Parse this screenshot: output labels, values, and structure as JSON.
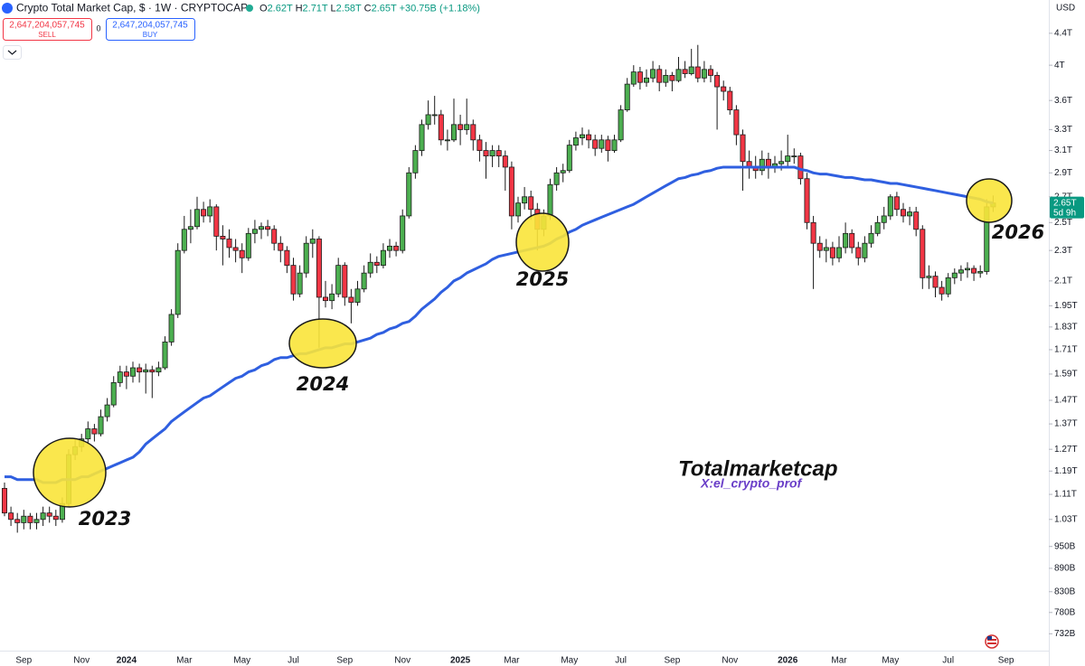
{
  "toolbar": {
    "title": "Crypto Total Market Cap, $ · 1W · CRYPTOCAP",
    "ohlc": [
      {
        "key": "O",
        "value": "2.62T"
      },
      {
        "key": "H",
        "value": "2.71T"
      },
      {
        "key": "L",
        "value": "2.58T"
      },
      {
        "key": "C",
        "value": "2.65T"
      }
    ],
    "change": "+30.75B (+1.18%)",
    "sell_price": "2,647,204,057,745",
    "sell_label": "SELL",
    "spread": "0",
    "buy_price": "2,647,204,057,745",
    "buy_label": "BUY"
  },
  "chart_data": {
    "type": "candlestick",
    "currency": "USD",
    "log_scale": true,
    "grid": false,
    "up_color": "#4caf50",
    "down_color": "#f23645",
    "ylim": [
      0.696,
      4.86
    ],
    "yticks": [
      {
        "value": 4.4,
        "label": "4.4T"
      },
      {
        "value": 4,
        "label": "4T"
      },
      {
        "value": 3.6,
        "label": "3.6T"
      },
      {
        "value": 3.3,
        "label": "3.3T"
      },
      {
        "value": 3.1,
        "label": "3.1T"
      },
      {
        "value": 2.9,
        "label": "2.9T"
      },
      {
        "value": 2.7,
        "label": "2.7T"
      },
      {
        "value": 2.5,
        "label": "2.5T"
      },
      {
        "value": 2.3,
        "label": "2.3T"
      },
      {
        "value": 2.1,
        "label": "2.1T"
      },
      {
        "value": 1.95,
        "label": "1.95T"
      },
      {
        "value": 1.83,
        "label": "1.83T"
      },
      {
        "value": 1.71,
        "label": "1.71T"
      },
      {
        "value": 1.59,
        "label": "1.59T"
      },
      {
        "value": 1.47,
        "label": "1.47T"
      },
      {
        "value": 1.37,
        "label": "1.37T"
      },
      {
        "value": 1.27,
        "label": "1.27T"
      },
      {
        "value": 1.19,
        "label": "1.19T"
      },
      {
        "value": 1.11,
        "label": "1.11T"
      },
      {
        "value": 1.03,
        "label": "1.03T"
      },
      {
        "value": 0.95,
        "label": "950B"
      },
      {
        "value": 0.89,
        "label": "890B"
      },
      {
        "value": 0.83,
        "label": "830B"
      },
      {
        "value": 0.78,
        "label": "780B"
      },
      {
        "value": 0.732,
        "label": "732B"
      }
    ],
    "categories": [
      null,
      null,
      null,
      "Sep",
      null,
      null,
      null,
      null,
      null,
      null,
      null,
      null,
      "Nov",
      null,
      null,
      null,
      null,
      null,
      null,
      "2024",
      null,
      null,
      null,
      null,
      null,
      null,
      null,
      null,
      "Mar",
      null,
      null,
      null,
      null,
      null,
      null,
      null,
      null,
      "May",
      null,
      null,
      null,
      null,
      null,
      null,
      null,
      "Jul",
      null,
      null,
      null,
      null,
      null,
      null,
      null,
      "Sep",
      null,
      null,
      null,
      null,
      null,
      null,
      null,
      null,
      "Nov",
      null,
      null,
      null,
      null,
      null,
      null,
      null,
      null,
      "2025",
      null,
      null,
      null,
      null,
      null,
      null,
      null,
      "Mar",
      null,
      null,
      null,
      null,
      null,
      null,
      null,
      null,
      "May",
      null,
      null,
      null,
      null,
      null,
      null,
      null,
      "Jul",
      null,
      null,
      null,
      null,
      null,
      null,
      null,
      "Sep",
      null,
      null,
      null,
      null,
      null,
      null,
      null,
      null,
      "Nov",
      null,
      null,
      null,
      null,
      null,
      null,
      null,
      null,
      "2026",
      null,
      null,
      null,
      null,
      null,
      null,
      null,
      "Mar",
      null,
      null,
      null,
      null,
      null,
      null,
      null,
      "May",
      null,
      null,
      null,
      null,
      null,
      null,
      null,
      null,
      "Jul",
      null,
      null,
      null,
      null,
      null,
      null,
      null,
      null,
      "Sep"
    ],
    "candles": [
      [
        1.13,
        1.15,
        1.04,
        1.05
      ],
      [
        1.05,
        1.07,
        1.01,
        1.03
      ],
      [
        1.03,
        1.05,
        0.99,
        1.02
      ],
      [
        1.02,
        1.06,
        1.0,
        1.04
      ],
      [
        1.04,
        1.05,
        1.0,
        1.02
      ],
      [
        1.02,
        1.05,
        1.0,
        1.03
      ],
      [
        1.03,
        1.07,
        1.01,
        1.05
      ],
      [
        1.05,
        1.07,
        1.02,
        1.04
      ],
      [
        1.04,
        1.06,
        1.01,
        1.03
      ],
      [
        1.03,
        1.1,
        1.02,
        1.08
      ],
      [
        1.08,
        1.27,
        1.07,
        1.25
      ],
      [
        1.25,
        1.31,
        1.23,
        1.28
      ],
      [
        1.28,
        1.33,
        1.26,
        1.31
      ],
      [
        1.31,
        1.38,
        1.29,
        1.35
      ],
      [
        1.35,
        1.37,
        1.3,
        1.33
      ],
      [
        1.33,
        1.43,
        1.32,
        1.4
      ],
      [
        1.4,
        1.48,
        1.38,
        1.45
      ],
      [
        1.45,
        1.58,
        1.44,
        1.55
      ],
      [
        1.55,
        1.63,
        1.53,
        1.6
      ],
      [
        1.6,
        1.63,
        1.52,
        1.58
      ],
      [
        1.58,
        1.65,
        1.55,
        1.62
      ],
      [
        1.62,
        1.64,
        1.55,
        1.6
      ],
      [
        1.6,
        1.64,
        1.5,
        1.61
      ],
      [
        1.61,
        1.63,
        1.48,
        1.6
      ],
      [
        1.6,
        1.65,
        1.58,
        1.62
      ],
      [
        1.62,
        1.78,
        1.61,
        1.75
      ],
      [
        1.75,
        1.93,
        1.73,
        1.9
      ],
      [
        1.9,
        2.35,
        1.88,
        2.3
      ],
      [
        2.3,
        2.55,
        2.28,
        2.45
      ],
      [
        2.45,
        2.6,
        2.35,
        2.47
      ],
      [
        2.47,
        2.7,
        2.45,
        2.6
      ],
      [
        2.6,
        2.66,
        2.5,
        2.55
      ],
      [
        2.55,
        2.68,
        2.5,
        2.62
      ],
      [
        2.62,
        2.64,
        2.3,
        2.4
      ],
      [
        2.4,
        2.48,
        2.2,
        2.38
      ],
      [
        2.38,
        2.45,
        2.25,
        2.32
      ],
      [
        2.32,
        2.38,
        2.22,
        2.3
      ],
      [
        2.3,
        2.35,
        2.15,
        2.25
      ],
      [
        2.25,
        2.46,
        2.23,
        2.42
      ],
      [
        2.42,
        2.52,
        2.35,
        2.45
      ],
      [
        2.45,
        2.5,
        2.38,
        2.47
      ],
      [
        2.47,
        2.52,
        2.4,
        2.45
      ],
      [
        2.45,
        2.48,
        2.3,
        2.35
      ],
      [
        2.35,
        2.4,
        2.22,
        2.3
      ],
      [
        2.3,
        2.33,
        2.15,
        2.2
      ],
      [
        2.2,
        2.25,
        1.98,
        2.02
      ],
      [
        2.02,
        2.2,
        2.0,
        2.15
      ],
      [
        2.15,
        2.4,
        2.12,
        2.35
      ],
      [
        2.35,
        2.45,
        2.25,
        2.38
      ],
      [
        2.38,
        2.4,
        1.72,
        2.0
      ],
      [
        2.0,
        2.1,
        1.94,
        1.98
      ],
      [
        1.98,
        2.08,
        1.93,
        2.02
      ],
      [
        2.02,
        2.25,
        2.0,
        2.2
      ],
      [
        2.2,
        2.22,
        1.95,
        2.0
      ],
      [
        2.0,
        2.05,
        1.85,
        1.97
      ],
      [
        1.97,
        2.1,
        1.95,
        2.05
      ],
      [
        2.05,
        2.2,
        2.03,
        2.15
      ],
      [
        2.15,
        2.28,
        2.12,
        2.22
      ],
      [
        2.22,
        2.26,
        2.15,
        2.2
      ],
      [
        2.2,
        2.35,
        2.18,
        2.3
      ],
      [
        2.3,
        2.38,
        2.25,
        2.33
      ],
      [
        2.33,
        2.36,
        2.26,
        2.3
      ],
      [
        2.3,
        2.6,
        2.28,
        2.55
      ],
      [
        2.55,
        2.95,
        2.53,
        2.9
      ],
      [
        2.9,
        3.15,
        2.85,
        3.1
      ],
      [
        3.1,
        3.4,
        3.05,
        3.35
      ],
      [
        3.35,
        3.6,
        3.3,
        3.45
      ],
      [
        3.45,
        3.65,
        3.35,
        3.45
      ],
      [
        3.45,
        3.5,
        3.15,
        3.2
      ],
      [
        3.2,
        3.3,
        3.1,
        3.2
      ],
      [
        3.2,
        3.62,
        3.18,
        3.35
      ],
      [
        3.35,
        3.45,
        3.15,
        3.3
      ],
      [
        3.3,
        3.62,
        3.25,
        3.35
      ],
      [
        3.35,
        3.4,
        3.1,
        3.2
      ],
      [
        3.2,
        3.25,
        3.0,
        3.1
      ],
      [
        3.1,
        3.18,
        2.85,
        3.05
      ],
      [
        3.05,
        3.15,
        2.95,
        3.1
      ],
      [
        3.1,
        3.15,
        2.95,
        3.05
      ],
      [
        3.05,
        3.1,
        2.75,
        2.95
      ],
      [
        2.95,
        3.0,
        2.45,
        2.55
      ],
      [
        2.55,
        2.7,
        2.5,
        2.65
      ],
      [
        2.65,
        2.78,
        2.6,
        2.7
      ],
      [
        2.7,
        2.75,
        2.52,
        2.6
      ],
      [
        2.6,
        2.65,
        2.3,
        2.45
      ],
      [
        2.45,
        2.6,
        2.4,
        2.55
      ],
      [
        2.55,
        2.85,
        2.52,
        2.8
      ],
      [
        2.8,
        2.95,
        2.75,
        2.9
      ],
      [
        2.9,
        2.98,
        2.82,
        2.92
      ],
      [
        2.92,
        3.2,
        2.9,
        3.15
      ],
      [
        3.15,
        3.28,
        3.1,
        3.22
      ],
      [
        3.22,
        3.32,
        3.15,
        3.25
      ],
      [
        3.25,
        3.3,
        3.12,
        3.2
      ],
      [
        3.2,
        3.25,
        3.05,
        3.12
      ],
      [
        3.12,
        3.25,
        3.08,
        3.2
      ],
      [
        3.2,
        3.24,
        3.0,
        3.1
      ],
      [
        3.1,
        3.25,
        3.08,
        3.2
      ],
      [
        3.2,
        3.55,
        3.18,
        3.5
      ],
      [
        3.5,
        3.85,
        3.48,
        3.78
      ],
      [
        3.78,
        4.0,
        3.75,
        3.92
      ],
      [
        3.92,
        3.98,
        3.72,
        3.8
      ],
      [
        3.8,
        3.95,
        3.75,
        3.85
      ],
      [
        3.85,
        4.05,
        3.8,
        3.95
      ],
      [
        3.95,
        4.0,
        3.7,
        3.8
      ],
      [
        3.8,
        3.95,
        3.75,
        3.88
      ],
      [
        3.88,
        3.92,
        3.7,
        3.82
      ],
      [
        3.82,
        4.1,
        3.8,
        3.95
      ],
      [
        3.95,
        4.05,
        3.85,
        3.9
      ],
      [
        3.9,
        4.2,
        3.88,
        3.98
      ],
      [
        3.98,
        4.25,
        3.8,
        3.85
      ],
      [
        3.85,
        4.05,
        3.8,
        3.95
      ],
      [
        3.95,
        4.0,
        3.8,
        3.88
      ],
      [
        3.88,
        3.92,
        3.3,
        3.75
      ],
      [
        3.75,
        3.82,
        3.6,
        3.7
      ],
      [
        3.7,
        3.75,
        3.45,
        3.5
      ],
      [
        3.5,
        3.55,
        3.15,
        3.25
      ],
      [
        3.25,
        3.3,
        2.75,
        3.0
      ],
      [
        3.0,
        3.1,
        2.85,
        2.95
      ],
      [
        2.95,
        3.05,
        2.85,
        2.92
      ],
      [
        2.92,
        3.1,
        2.88,
        3.02
      ],
      [
        3.02,
        3.08,
        2.85,
        2.95
      ],
      [
        2.95,
        3.05,
        2.9,
        2.98
      ],
      [
        2.98,
        3.1,
        2.92,
        3.0
      ],
      [
        3.0,
        3.25,
        2.95,
        3.05
      ],
      [
        3.05,
        3.12,
        2.98,
        3.05
      ],
      [
        3.05,
        3.08,
        2.8,
        2.85
      ],
      [
        2.85,
        2.9,
        2.45,
        2.5
      ],
      [
        2.5,
        2.55,
        2.05,
        2.35
      ],
      [
        2.35,
        2.4,
        2.25,
        2.3
      ],
      [
        2.3,
        2.38,
        2.22,
        2.32
      ],
      [
        2.32,
        2.36,
        2.2,
        2.25
      ],
      [
        2.25,
        2.4,
        2.22,
        2.32
      ],
      [
        2.32,
        2.5,
        2.28,
        2.42
      ],
      [
        2.42,
        2.45,
        2.28,
        2.32
      ],
      [
        2.32,
        2.36,
        2.2,
        2.25
      ],
      [
        2.25,
        2.4,
        2.22,
        2.35
      ],
      [
        2.35,
        2.48,
        2.32,
        2.42
      ],
      [
        2.42,
        2.55,
        2.4,
        2.5
      ],
      [
        2.5,
        2.62,
        2.45,
        2.55
      ],
      [
        2.55,
        2.72,
        2.52,
        2.7
      ],
      [
        2.7,
        2.74,
        2.55,
        2.6
      ],
      [
        2.6,
        2.65,
        2.5,
        2.55
      ],
      [
        2.55,
        2.62,
        2.48,
        2.58
      ],
      [
        2.58,
        2.62,
        2.4,
        2.45
      ],
      [
        2.45,
        2.48,
        2.05,
        2.12
      ],
      [
        2.12,
        2.2,
        2.05,
        2.13
      ],
      [
        2.13,
        2.16,
        2.0,
        2.06
      ],
      [
        2.06,
        2.1,
        1.98,
        2.02
      ],
      [
        2.02,
        2.15,
        2.0,
        2.12
      ],
      [
        2.12,
        2.18,
        2.08,
        2.15
      ],
      [
        2.15,
        2.2,
        2.1,
        2.17
      ],
      [
        2.17,
        2.22,
        2.12,
        2.18
      ],
      [
        2.18,
        2.2,
        2.1,
        2.15
      ],
      [
        2.15,
        2.2,
        2.12,
        2.16
      ],
      [
        2.16,
        2.68,
        2.14,
        2.62
      ],
      [
        2.62,
        2.71,
        2.58,
        2.65
      ],
      null,
      null
    ],
    "moving_average": {
      "color": "#2f5fe0",
      "values": [
        1.17,
        1.17,
        1.16,
        1.16,
        1.16,
        1.16,
        1.15,
        1.15,
        1.15,
        1.16,
        1.16,
        1.16,
        1.17,
        1.17,
        1.18,
        1.19,
        1.2,
        1.21,
        1.22,
        1.23,
        1.24,
        1.26,
        1.29,
        1.31,
        1.33,
        1.35,
        1.38,
        1.4,
        1.42,
        1.44,
        1.46,
        1.48,
        1.49,
        1.51,
        1.53,
        1.55,
        1.57,
        1.58,
        1.6,
        1.61,
        1.63,
        1.64,
        1.66,
        1.67,
        1.67,
        1.68,
        1.69,
        1.69,
        1.7,
        1.71,
        1.72,
        1.72,
        1.73,
        1.74,
        1.74,
        1.75,
        1.76,
        1.77,
        1.79,
        1.8,
        1.82,
        1.83,
        1.85,
        1.86,
        1.89,
        1.93,
        1.96,
        1.99,
        2.03,
        2.06,
        2.1,
        2.12,
        2.15,
        2.17,
        2.19,
        2.21,
        2.24,
        2.26,
        2.27,
        2.28,
        2.29,
        2.3,
        2.31,
        2.32,
        2.33,
        2.35,
        2.38,
        2.4,
        2.43,
        2.45,
        2.48,
        2.5,
        2.52,
        2.54,
        2.56,
        2.58,
        2.6,
        2.62,
        2.64,
        2.67,
        2.7,
        2.73,
        2.76,
        2.79,
        2.82,
        2.85,
        2.86,
        2.88,
        2.89,
        2.91,
        2.92,
        2.94,
        2.95,
        2.95,
        2.95,
        2.95,
        2.95,
        2.95,
        2.95,
        2.95,
        2.95,
        2.95,
        2.95,
        2.95,
        2.93,
        2.92,
        2.9,
        2.89,
        2.89,
        2.88,
        2.87,
        2.86,
        2.86,
        2.85,
        2.84,
        2.84,
        2.83,
        2.82,
        2.81,
        2.81,
        2.8,
        2.79,
        2.78,
        2.77,
        2.76,
        2.75,
        2.74,
        2.73,
        2.72,
        2.71,
        2.7,
        2.69,
        2.68,
        2.66,
        2.65,
        null,
        null
      ]
    },
    "last_price_label": "2.65T",
    "countdown": "5d 9h",
    "annotations": [
      {
        "text": "2023"
      },
      {
        "text": "2024"
      },
      {
        "text": "2025"
      },
      {
        "text": "2026"
      }
    ],
    "watermark": "Totalmarketcap",
    "credit": "X:el_crypto_prof"
  }
}
